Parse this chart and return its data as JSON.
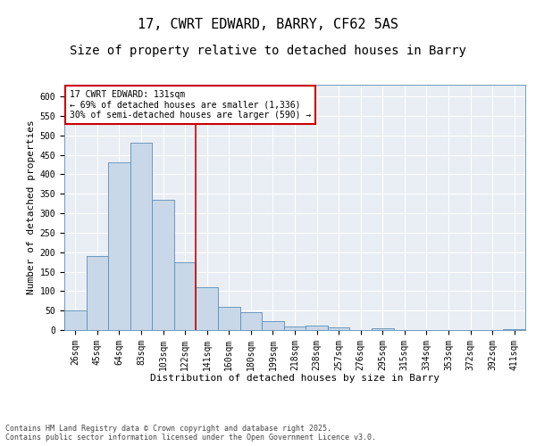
{
  "title": "17, CWRT EDWARD, BARRY, CF62 5AS",
  "subtitle": "Size of property relative to detached houses in Barry",
  "xlabel": "Distribution of detached houses by size in Barry",
  "ylabel": "Number of detached properties",
  "categories": [
    "26sqm",
    "45sqm",
    "64sqm",
    "83sqm",
    "103sqm",
    "122sqm",
    "141sqm",
    "160sqm",
    "180sqm",
    "199sqm",
    "218sqm",
    "238sqm",
    "257sqm",
    "276sqm",
    "295sqm",
    "315sqm",
    "334sqm",
    "353sqm",
    "372sqm",
    "392sqm",
    "411sqm"
  ],
  "values": [
    50,
    190,
    430,
    480,
    335,
    175,
    110,
    60,
    45,
    22,
    10,
    12,
    6,
    0,
    5,
    1,
    0,
    0,
    0,
    0,
    3
  ],
  "bar_color": "#c8d8e8",
  "bar_edge_color": "#5b8db8",
  "vline_x": 5.5,
  "vline_color": "#cc0000",
  "annotation_text": "17 CWRT EDWARD: 131sqm\n← 69% of detached houses are smaller (1,336)\n30% of semi-detached houses are larger (590) →",
  "annotation_box_color": "#cc0000",
  "ylim": [
    0,
    630
  ],
  "yticks": [
    0,
    50,
    100,
    150,
    200,
    250,
    300,
    350,
    400,
    450,
    500,
    550,
    600
  ],
  "background_color": "#e8eef4",
  "footer": "Contains HM Land Registry data © Crown copyright and database right 2025.\nContains public sector information licensed under the Open Government Licence v3.0.",
  "title_fontsize": 11,
  "subtitle_fontsize": 10,
  "axis_label_fontsize": 8,
  "tick_fontsize": 7,
  "annotation_fontsize": 7,
  "footer_fontsize": 6
}
